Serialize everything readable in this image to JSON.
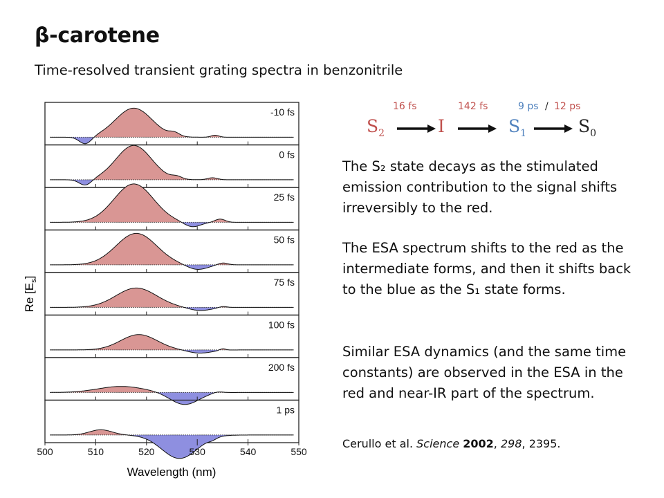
{
  "slide": {
    "title": "β-carotene",
    "subtitle": "Time-resolved transient grating spectra in benzonitrile"
  },
  "scheme": {
    "labels": [
      {
        "text": "16 fs",
        "color": "#c0504d"
      },
      {
        "text": "142 fs",
        "color": "#c0504d"
      },
      {
        "text": "9 ps",
        "color": "#4f81bd"
      },
      {
        "text": "/",
        "color": "#222222"
      },
      {
        "text": "12 ps",
        "color": "#c0504d"
      }
    ],
    "states": [
      {
        "main": "S",
        "sub": "2",
        "color": "#c0504d"
      },
      {
        "main": "I",
        "sub": "",
        "color": "#c0504d"
      },
      {
        "main": "S",
        "sub": "1",
        "color": "#4f81bd"
      },
      {
        "main": "S",
        "sub": "0",
        "color": "#222222"
      }
    ]
  },
  "text": {
    "p1": "The S₂ state decays as the stimulated emission contribution to the signal shifts irreversibly to the red.",
    "p2": "The ESA spectrum shifts to the red as the intermediate forms, and then it shifts back to the blue as the S₁ state forms.",
    "p3": "Similar ESA dynamics (and the same time constants) are observed in the ESA in the red and near-IR part of the spectrum.",
    "ref": {
      "authors": "Cerullo et al.",
      "journal": "Science",
      "year": "2002",
      "volume": "298",
      "pages": "2395."
    }
  },
  "colors": {
    "positive_fill": "#d99694",
    "negative_fill": "#8e8fe0",
    "red_text": "#c0504d",
    "blue_text": "#4f81bd"
  },
  "chart_data": {
    "type": "area",
    "xlabel": "Wavelength (nm)",
    "ylabel": "Re [Es]",
    "xlim": [
      500,
      550
    ],
    "xticks": [
      500,
      510,
      520,
      530,
      540,
      550
    ],
    "panels": [
      {
        "label": "-10 fs",
        "peaks": [
          {
            "center": 517.5,
            "width": 3.6,
            "amp": 0.72
          },
          {
            "center": 508,
            "width": 1.2,
            "amp": -0.18
          },
          {
            "center": 525.5,
            "width": 1.0,
            "amp": 0.08
          },
          {
            "center": 533.5,
            "width": 0.8,
            "amp": 0.05
          }
        ]
      },
      {
        "label": "0 fs",
        "peaks": [
          {
            "center": 517.5,
            "width": 3.5,
            "amp": 0.85
          },
          {
            "center": 508,
            "width": 1.2,
            "amp": -0.15
          },
          {
            "center": 526,
            "width": 1.0,
            "amp": 0.06
          },
          {
            "center": 533,
            "width": 1.0,
            "amp": 0.05
          }
        ]
      },
      {
        "label": "25 fs",
        "peaks": [
          {
            "center": 517.5,
            "width": 3.9,
            "amp": 0.95
          },
          {
            "center": 529,
            "width": 1.6,
            "amp": -0.12
          },
          {
            "center": 534.5,
            "width": 1.0,
            "amp": 0.08
          }
        ]
      },
      {
        "label": "50 fs",
        "peaks": [
          {
            "center": 518,
            "width": 4.0,
            "amp": 0.78
          },
          {
            "center": 530,
            "width": 2.0,
            "amp": -0.12
          },
          {
            "center": 535,
            "width": 1.0,
            "amp": 0.05
          }
        ]
      },
      {
        "label": "75 fs",
        "peaks": [
          {
            "center": 518,
            "width": 4.0,
            "amp": 0.48
          },
          {
            "center": 530.5,
            "width": 2.2,
            "amp": -0.08
          },
          {
            "center": 535,
            "width": 0.8,
            "amp": 0.03
          }
        ]
      },
      {
        "label": "100 fs",
        "peaks": [
          {
            "center": 518.5,
            "width": 3.6,
            "amp": 0.38
          },
          {
            "center": 530.5,
            "width": 2.3,
            "amp": -0.08
          },
          {
            "center": 535,
            "width": 0.6,
            "amp": 0.04
          }
        ]
      },
      {
        "label": "200 fs",
        "peaks": [
          {
            "center": 515,
            "width": 4.5,
            "amp": 0.15
          },
          {
            "center": 527.5,
            "width": 2.8,
            "amp": -0.3
          },
          {
            "center": 534,
            "width": 1.0,
            "amp": 0.03
          }
        ]
      },
      {
        "label": "1 ps",
        "peaks": [
          {
            "center": 511,
            "width": 2.2,
            "amp": 0.13
          },
          {
            "center": 526.5,
            "width": 3.5,
            "amp": -0.58
          },
          {
            "center": 533,
            "width": 0.8,
            "amp": -0.04
          }
        ]
      }
    ]
  }
}
